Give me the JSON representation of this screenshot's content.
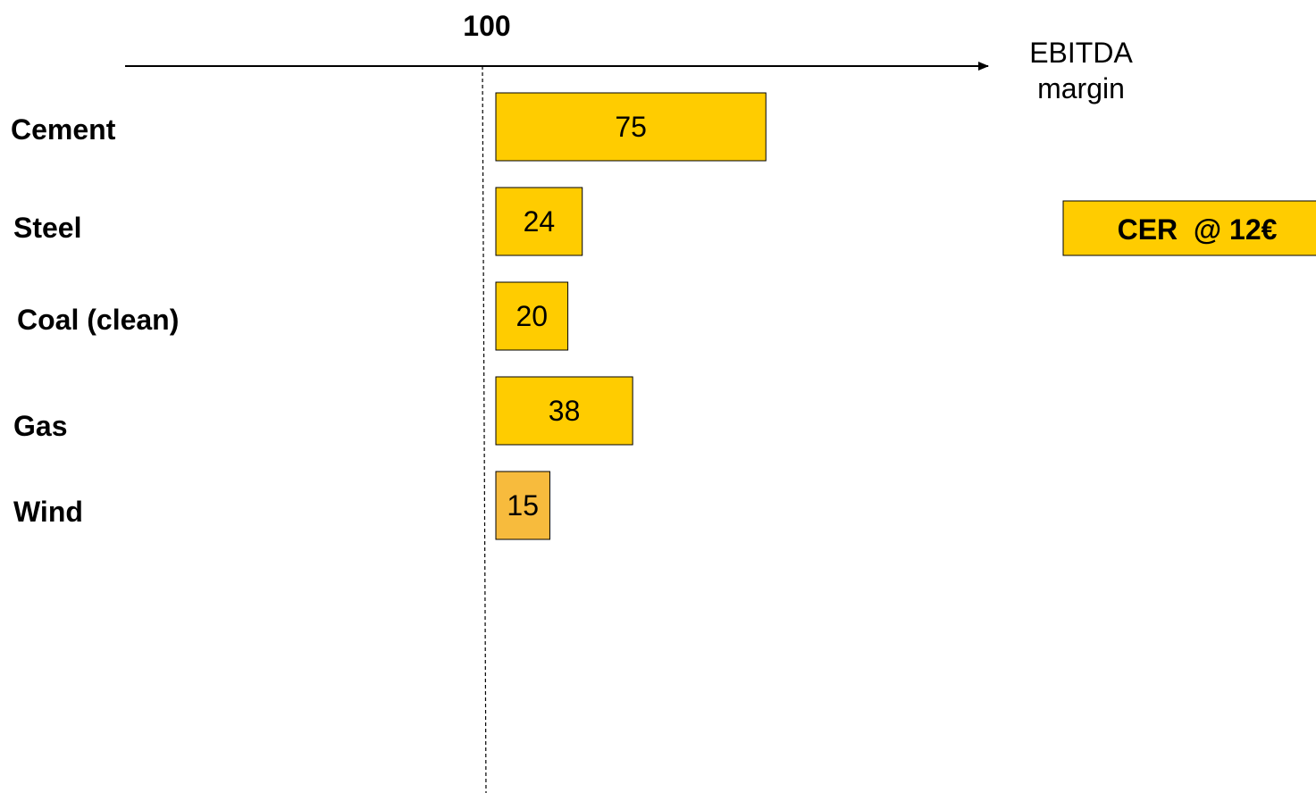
{
  "chart_data": {
    "type": "bar",
    "orientation": "horizontal",
    "categories": [
      "Cement",
      "Steel",
      "Coal (clean)",
      "Gas",
      "Wind"
    ],
    "values": [
      75,
      24,
      20,
      38,
      15
    ],
    "reference_label": "100",
    "axis_label_line1": "EBITDA",
    "axis_label_line2": "margin",
    "badge": "CER  @ 12€",
    "colors": {
      "bar": "#FFCC00",
      "bar_highlight": "#F7BB3D",
      "badge": "#FFCC00",
      "stroke": "#000000"
    }
  }
}
